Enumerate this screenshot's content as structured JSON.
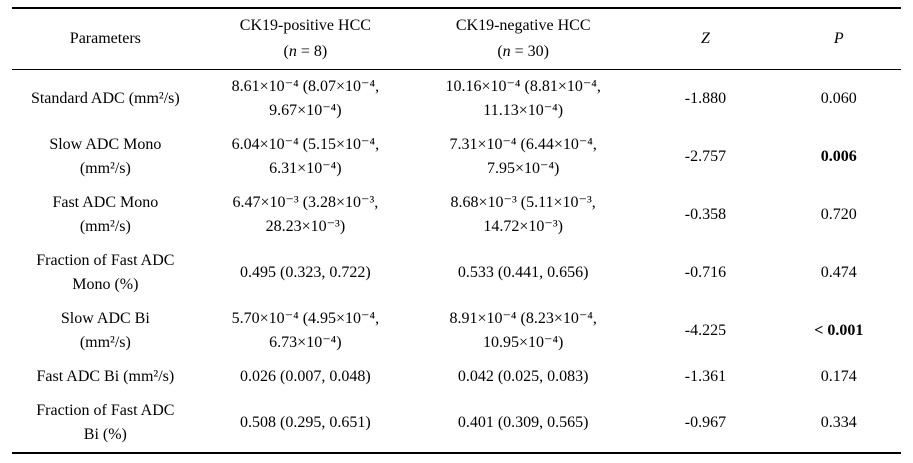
{
  "table": {
    "headers": {
      "parameters": "Parameters",
      "group1_title": "CK19-positive HCC",
      "group1_n_pre": "(",
      "group1_n_var": "n",
      "group1_n_post": " = 8)",
      "group2_title": "CK19-negative HCC",
      "group2_n_pre": "(",
      "group2_n_var": "n",
      "group2_n_post": " = 30)",
      "z": "Z",
      "p": "P"
    },
    "rows": [
      {
        "parameter": "Standard ADC (mm²/s)",
        "ck19_positive": "8.61×10⁻⁴ (8.07×10⁻⁴,\n9.67×10⁻⁴)",
        "ck19_negative": "10.16×10⁻⁴ (8.81×10⁻⁴,\n11.13×10⁻⁴)",
        "z": "-1.880",
        "p": "0.060"
      },
      {
        "parameter": "Slow ADC Mono\n(mm²/s)",
        "ck19_positive": "6.04×10⁻⁴ (5.15×10⁻⁴,\n6.31×10⁻⁴)",
        "ck19_negative": "7.31×10⁻⁴ (6.44×10⁻⁴,\n7.95×10⁻⁴)",
        "z": "-2.757",
        "p": "0.006"
      },
      {
        "parameter": "Fast ADC Mono\n(mm²/s)",
        "ck19_positive": "6.47×10⁻³ (3.28×10⁻³,\n28.23×10⁻³)",
        "ck19_negative": "8.68×10⁻³ (5.11×10⁻³,\n14.72×10⁻³)",
        "z": "-0.358",
        "p": "0.720"
      },
      {
        "parameter": "Fraction of Fast ADC\nMono (%)",
        "ck19_positive": "0.495 (0.323, 0.722)",
        "ck19_negative": "0.533 (0.441, 0.656)",
        "z": "-0.716",
        "p": "0.474"
      },
      {
        "parameter": "Slow ADC Bi\n(mm²/s)",
        "ck19_positive": "5.70×10⁻⁴ (4.95×10⁻⁴,\n6.73×10⁻⁴)",
        "ck19_negative": "8.91×10⁻⁴ (8.23×10⁻⁴,\n10.95×10⁻⁴)",
        "z": "-4.225",
        "p": "< 0.001"
      },
      {
        "parameter": "Fast ADC Bi (mm²/s)",
        "ck19_positive": "0.026 (0.007, 0.048)",
        "ck19_negative": "0.042 (0.025, 0.083)",
        "z": "-1.361",
        "p": "0.174"
      },
      {
        "parameter": "Fraction of Fast ADC\nBi (%)",
        "ck19_positive": "0.508 (0.295, 0.651)",
        "ck19_negative": "0.401 (0.309, 0.565)",
        "z": "-0.967",
        "p": "0.334"
      }
    ]
  }
}
